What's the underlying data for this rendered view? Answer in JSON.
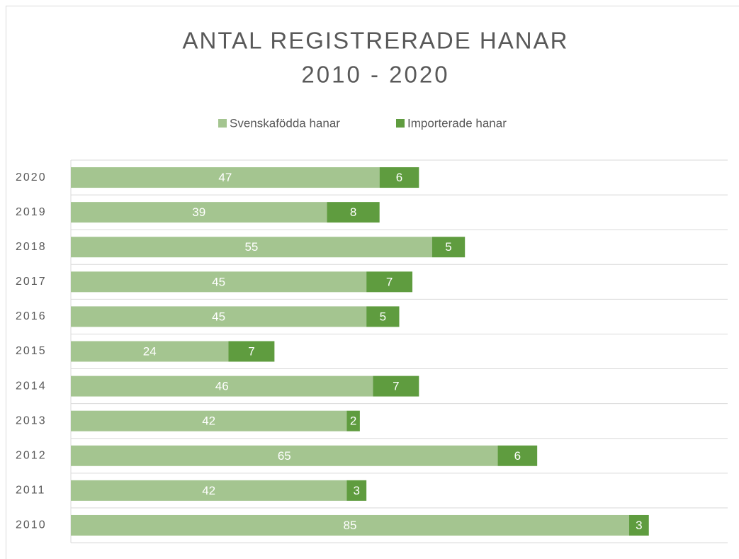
{
  "chart_data": {
    "type": "stacked-barh",
    "title": [
      "ANTAL REGISTRERADE HANAR",
      "2010 - 2020"
    ],
    "categories": [
      "2010",
      "2011",
      "2012",
      "2013",
      "2014",
      "2015",
      "2016",
      "2017",
      "2018",
      "2019",
      "2020"
    ],
    "series": [
      {
        "name": "Svenskafödda hanar",
        "color": "#a4c590",
        "values": [
          85,
          42,
          65,
          42,
          46,
          24,
          45,
          45,
          55,
          39,
          47
        ]
      },
      {
        "name": "Importerade hanar",
        "color": "#5f9c3f",
        "values": [
          3,
          3,
          6,
          2,
          7,
          7,
          5,
          7,
          5,
          8,
          6
        ]
      }
    ],
    "xlim": [
      0,
      100
    ],
    "legend": "top",
    "grid": true
  }
}
